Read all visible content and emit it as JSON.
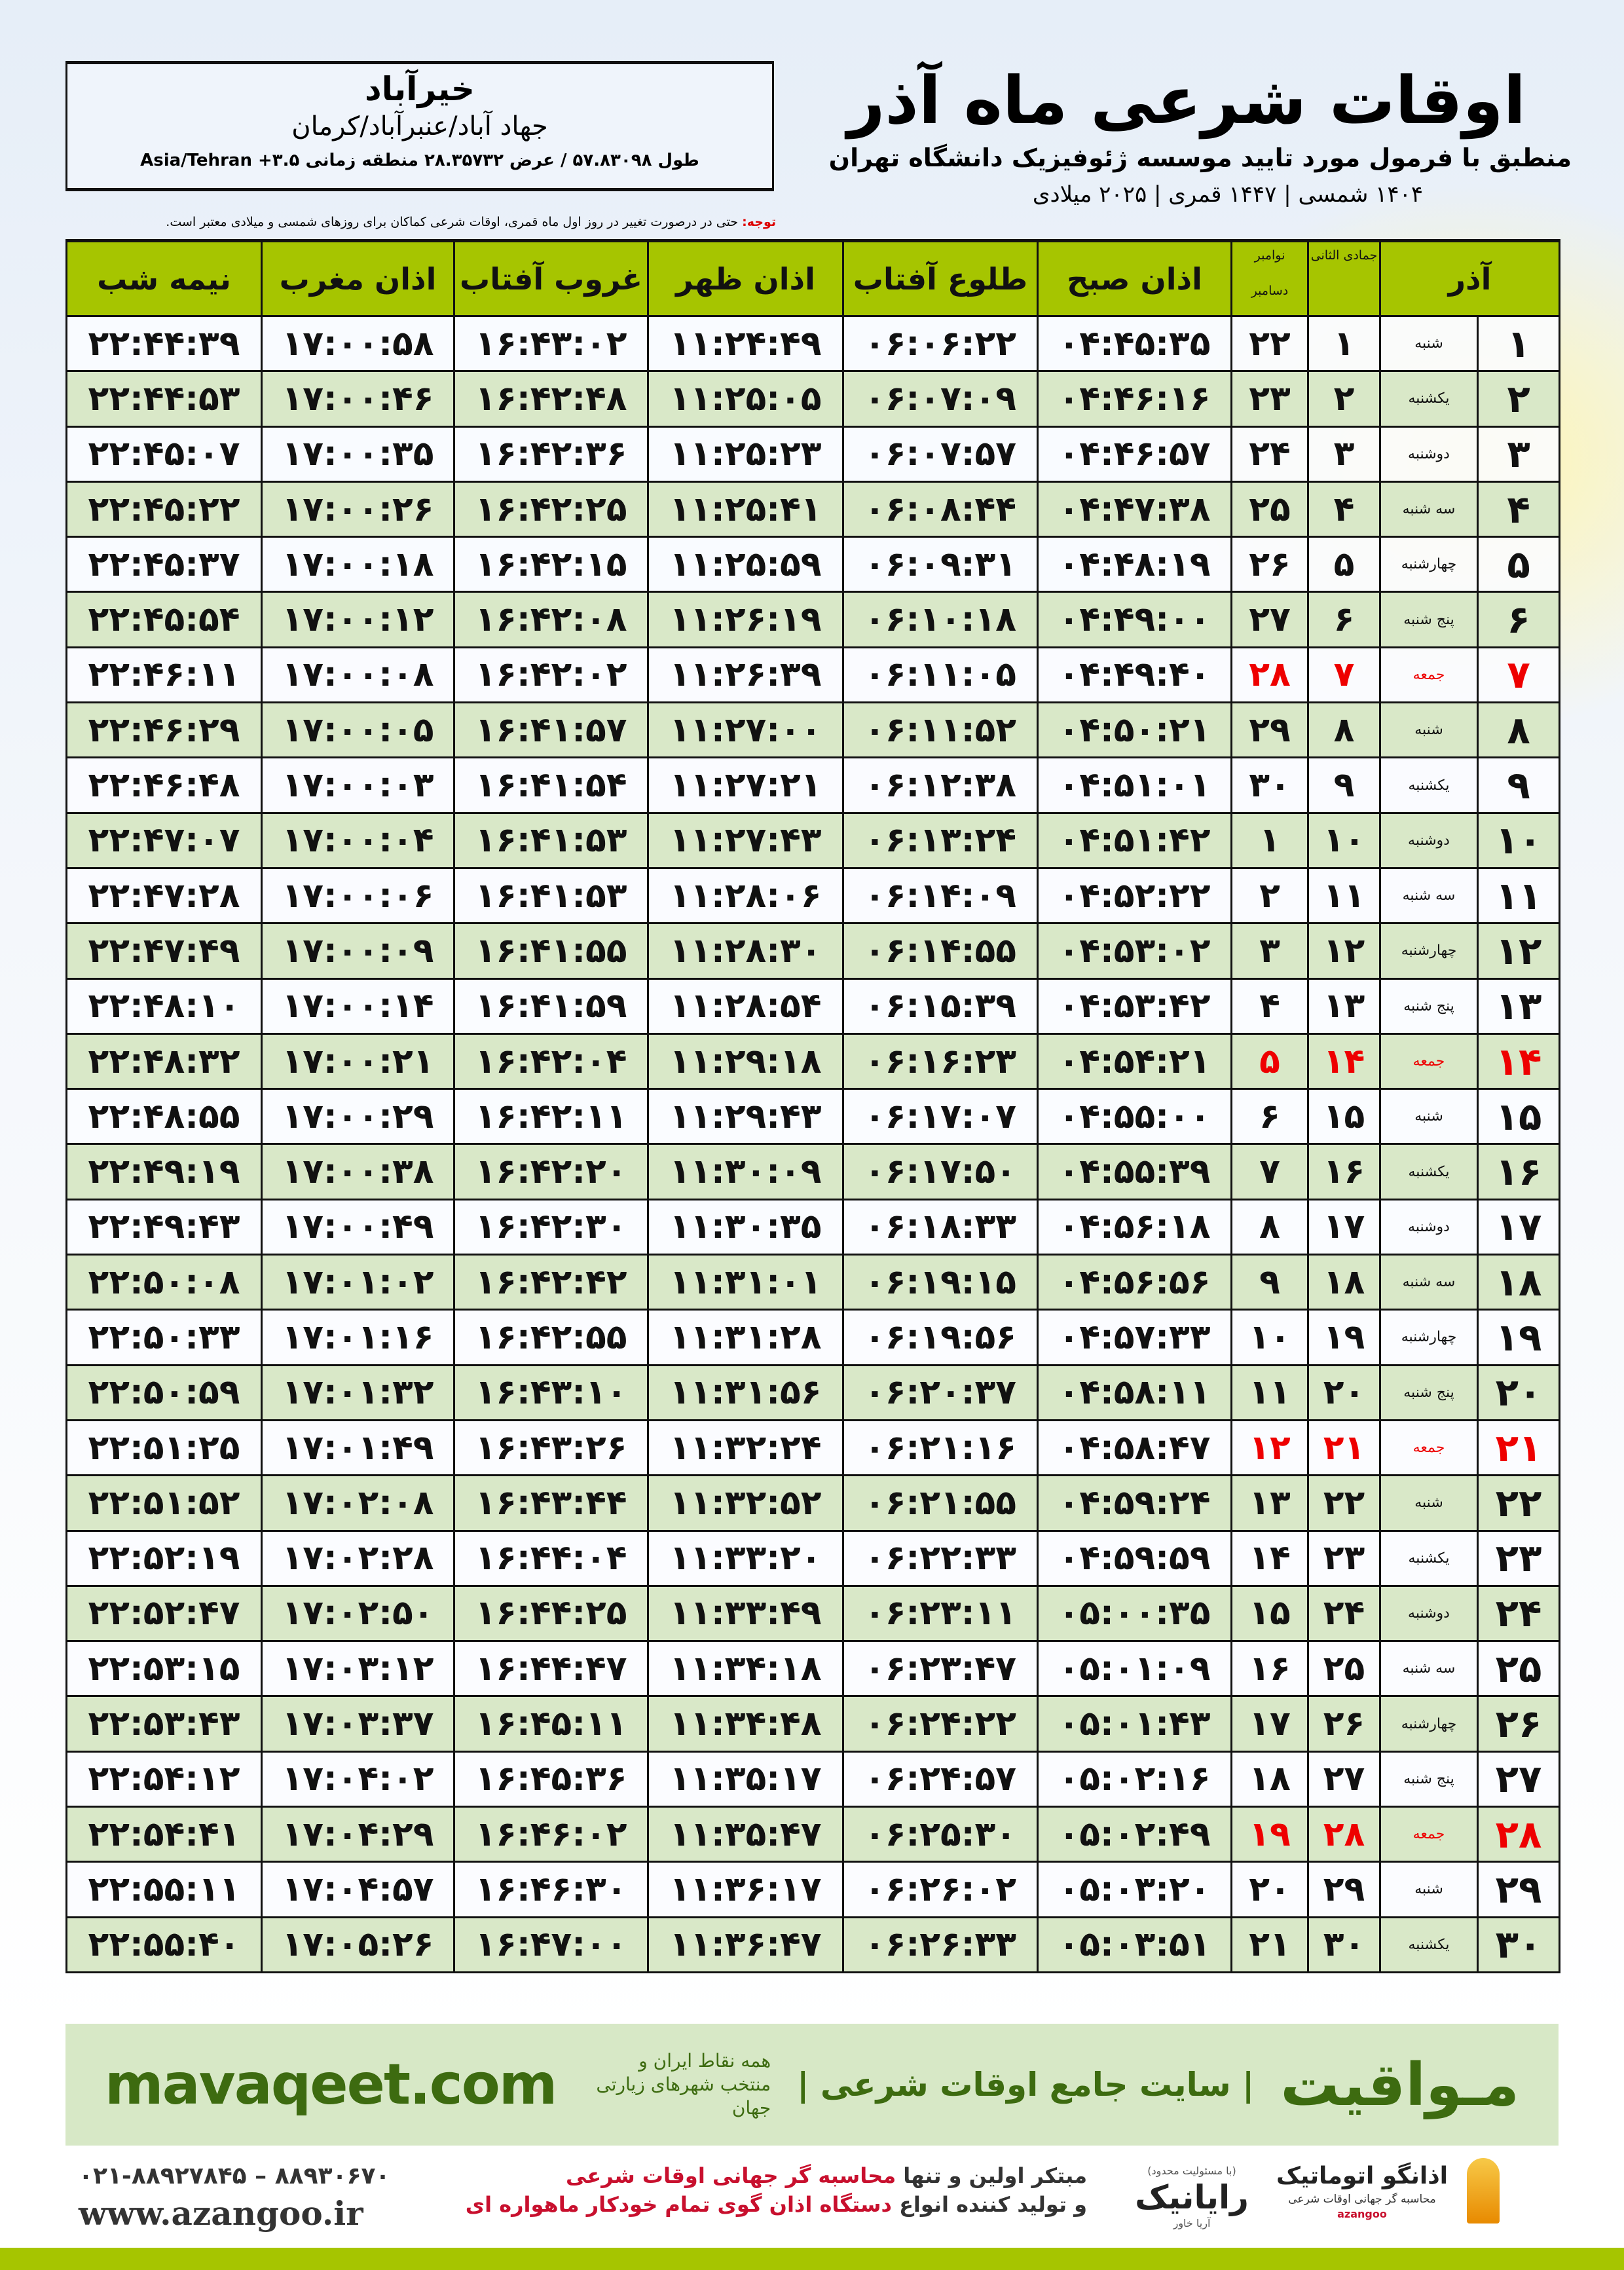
{
  "location": {
    "city": "خیرآباد",
    "path": "جهاد آباد/عنبرآباد/کرمان",
    "coords": "طول ۵۷.۸۳۰۹۸ / عرض ۲۸.۳۵۷۳۲ منطقه زمانی ۳.۵+ Asia/Tehran"
  },
  "title": {
    "main": "اوقات شرعی ماه آذر",
    "subtitle": "منطبق با فرمول مورد تایید موسسه ژئوفیزیک دانشگاه تهران",
    "years": "۱۴۰۴ شمسی | ۱۴۴۷ قمری | ۲۰۲۵ میلادی"
  },
  "note": {
    "label": "توجه:",
    "text": "حتی در درصورت تغییر در روز اول ماه قمری، اوقات شرعی کماکان برای روزهای شمسی و میلادی معتبر است."
  },
  "table": {
    "headers": {
      "azar": "آذر",
      "jamadi": "جمادی الثانی",
      "november": "نوامبر",
      "december": "دسامبر",
      "subh": "اذان صبح",
      "tolu": "طلوع آفتاب",
      "zohr": "اذان ظهر",
      "ghorub": "غروب آفتاب",
      "maghrib": "اذان مغرب",
      "nimeshab": "نیمه شب"
    },
    "holiday_color": "#ee0000",
    "rows": [
      [
        "۱",
        "شنبه",
        "۱",
        "۲۲",
        "۰۴:۴۵:۳۵",
        "۰۶:۰۶:۲۲",
        "۱۱:۲۴:۴۹",
        "۱۶:۴۳:۰۲",
        "۱۷:۰۰:۵۸",
        "۲۲:۴۴:۳۹"
      ],
      [
        "۲",
        "یکشنبه",
        "۲",
        "۲۳",
        "۰۴:۴۶:۱۶",
        "۰۶:۰۷:۰۹",
        "۱۱:۲۵:۰۵",
        "۱۶:۴۲:۴۸",
        "۱۷:۰۰:۴۶",
        "۲۲:۴۴:۵۳"
      ],
      [
        "۳",
        "دوشنبه",
        "۳",
        "۲۴",
        "۰۴:۴۶:۵۷",
        "۰۶:۰۷:۵۷",
        "۱۱:۲۵:۲۳",
        "۱۶:۴۲:۳۶",
        "۱۷:۰۰:۳۵",
        "۲۲:۴۵:۰۷"
      ],
      [
        "۴",
        "سه شنبه",
        "۴",
        "۲۵",
        "۰۴:۴۷:۳۸",
        "۰۶:۰۸:۴۴",
        "۱۱:۲۵:۴۱",
        "۱۶:۴۲:۲۵",
        "۱۷:۰۰:۲۶",
        "۲۲:۴۵:۲۲"
      ],
      [
        "۵",
        "چهارشنبه",
        "۵",
        "۲۶",
        "۰۴:۴۸:۱۹",
        "۰۶:۰۹:۳۱",
        "۱۱:۲۵:۵۹",
        "۱۶:۴۲:۱۵",
        "۱۷:۰۰:۱۸",
        "۲۲:۴۵:۳۷"
      ],
      [
        "۶",
        "پنج شنبه",
        "۶",
        "۲۷",
        "۰۴:۴۹:۰۰",
        "۰۶:۱۰:۱۸",
        "۱۱:۲۶:۱۹",
        "۱۶:۴۲:۰۸",
        "۱۷:۰۰:۱۲",
        "۲۲:۴۵:۵۴"
      ],
      [
        "۷",
        "جمعه",
        "۷",
        "۲۸",
        "۰۴:۴۹:۴۰",
        "۰۶:۱۱:۰۵",
        "۱۱:۲۶:۳۹",
        "۱۶:۴۲:۰۲",
        "۱۷:۰۰:۰۸",
        "۲۲:۴۶:۱۱"
      ],
      [
        "۸",
        "شنبه",
        "۸",
        "۲۹",
        "۰۴:۵۰:۲۱",
        "۰۶:۱۱:۵۲",
        "۱۱:۲۷:۰۰",
        "۱۶:۴۱:۵۷",
        "۱۷:۰۰:۰۵",
        "۲۲:۴۶:۲۹"
      ],
      [
        "۹",
        "یکشنبه",
        "۹",
        "۳۰",
        "۰۴:۵۱:۰۱",
        "۰۶:۱۲:۳۸",
        "۱۱:۲۷:۲۱",
        "۱۶:۴۱:۵۴",
        "۱۷:۰۰:۰۳",
        "۲۲:۴۶:۴۸"
      ],
      [
        "۱۰",
        "دوشنبه",
        "۱۰",
        "۱",
        "۰۴:۵۱:۴۲",
        "۰۶:۱۳:۲۴",
        "۱۱:۲۷:۴۳",
        "۱۶:۴۱:۵۳",
        "۱۷:۰۰:۰۴",
        "۲۲:۴۷:۰۷"
      ],
      [
        "۱۱",
        "سه شنبه",
        "۱۱",
        "۲",
        "۰۴:۵۲:۲۲",
        "۰۶:۱۴:۰۹",
        "۱۱:۲۸:۰۶",
        "۱۶:۴۱:۵۳",
        "۱۷:۰۰:۰۶",
        "۲۲:۴۷:۲۸"
      ],
      [
        "۱۲",
        "چهارشنبه",
        "۱۲",
        "۳",
        "۰۴:۵۳:۰۲",
        "۰۶:۱۴:۵۵",
        "۱۱:۲۸:۳۰",
        "۱۶:۴۱:۵۵",
        "۱۷:۰۰:۰۹",
        "۲۲:۴۷:۴۹"
      ],
      [
        "۱۳",
        "پنج شنبه",
        "۱۳",
        "۴",
        "۰۴:۵۳:۴۲",
        "۰۶:۱۵:۳۹",
        "۱۱:۲۸:۵۴",
        "۱۶:۴۱:۵۹",
        "۱۷:۰۰:۱۴",
        "۲۲:۴۸:۱۰"
      ],
      [
        "۱۴",
        "جمعه",
        "۱۴",
        "۵",
        "۰۴:۵۴:۲۱",
        "۰۶:۱۶:۲۳",
        "۱۱:۲۹:۱۸",
        "۱۶:۴۲:۰۴",
        "۱۷:۰۰:۲۱",
        "۲۲:۴۸:۳۲"
      ],
      [
        "۱۵",
        "شنبه",
        "۱۵",
        "۶",
        "۰۴:۵۵:۰۰",
        "۰۶:۱۷:۰۷",
        "۱۱:۲۹:۴۳",
        "۱۶:۴۲:۱۱",
        "۱۷:۰۰:۲۹",
        "۲۲:۴۸:۵۵"
      ],
      [
        "۱۶",
        "یکشنبه",
        "۱۶",
        "۷",
        "۰۴:۵۵:۳۹",
        "۰۶:۱۷:۵۰",
        "۱۱:۳۰:۰۹",
        "۱۶:۴۲:۲۰",
        "۱۷:۰۰:۳۸",
        "۲۲:۴۹:۱۹"
      ],
      [
        "۱۷",
        "دوشنبه",
        "۱۷",
        "۸",
        "۰۴:۵۶:۱۸",
        "۰۶:۱۸:۳۳",
        "۱۱:۳۰:۳۵",
        "۱۶:۴۲:۳۰",
        "۱۷:۰۰:۴۹",
        "۲۲:۴۹:۴۳"
      ],
      [
        "۱۸",
        "سه شنبه",
        "۱۸",
        "۹",
        "۰۴:۵۶:۵۶",
        "۰۶:۱۹:۱۵",
        "۱۱:۳۱:۰۱",
        "۱۶:۴۲:۴۲",
        "۱۷:۰۱:۰۲",
        "۲۲:۵۰:۰۸"
      ],
      [
        "۱۹",
        "چهارشنبه",
        "۱۹",
        "۱۰",
        "۰۴:۵۷:۳۳",
        "۰۶:۱۹:۵۶",
        "۱۱:۳۱:۲۸",
        "۱۶:۴۲:۵۵",
        "۱۷:۰۱:۱۶",
        "۲۲:۵۰:۳۳"
      ],
      [
        "۲۰",
        "پنج شنبه",
        "۲۰",
        "۱۱",
        "۰۴:۵۸:۱۱",
        "۰۶:۲۰:۳۷",
        "۱۱:۳۱:۵۶",
        "۱۶:۴۳:۱۰",
        "۱۷:۰۱:۳۲",
        "۲۲:۵۰:۵۹"
      ],
      [
        "۲۱",
        "جمعه",
        "۲۱",
        "۱۲",
        "۰۴:۵۸:۴۷",
        "۰۶:۲۱:۱۶",
        "۱۱:۳۲:۲۴",
        "۱۶:۴۳:۲۶",
        "۱۷:۰۱:۴۹",
        "۲۲:۵۱:۲۵"
      ],
      [
        "۲۲",
        "شنبه",
        "۲۲",
        "۱۳",
        "۰۴:۵۹:۲۴",
        "۰۶:۲۱:۵۵",
        "۱۱:۳۲:۵۲",
        "۱۶:۴۳:۴۴",
        "۱۷:۰۲:۰۸",
        "۲۲:۵۱:۵۲"
      ],
      [
        "۲۳",
        "یکشنبه",
        "۲۳",
        "۱۴",
        "۰۴:۵۹:۵۹",
        "۰۶:۲۲:۳۳",
        "۱۱:۳۳:۲۰",
        "۱۶:۴۴:۰۴",
        "۱۷:۰۲:۲۸",
        "۲۲:۵۲:۱۹"
      ],
      [
        "۲۴",
        "دوشنبه",
        "۲۴",
        "۱۵",
        "۰۵:۰۰:۳۵",
        "۰۶:۲۳:۱۱",
        "۱۱:۳۳:۴۹",
        "۱۶:۴۴:۲۵",
        "۱۷:۰۲:۵۰",
        "۲۲:۵۲:۴۷"
      ],
      [
        "۲۵",
        "سه شنبه",
        "۲۵",
        "۱۶",
        "۰۵:۰۱:۰۹",
        "۰۶:۲۳:۴۷",
        "۱۱:۳۴:۱۸",
        "۱۶:۴۴:۴۷",
        "۱۷:۰۳:۱۲",
        "۲۲:۵۳:۱۵"
      ],
      [
        "۲۶",
        "چهارشنبه",
        "۲۶",
        "۱۷",
        "۰۵:۰۱:۴۳",
        "۰۶:۲۴:۲۲",
        "۱۱:۳۴:۴۸",
        "۱۶:۴۵:۱۱",
        "۱۷:۰۳:۳۷",
        "۲۲:۵۳:۴۳"
      ],
      [
        "۲۷",
        "پنج شنبه",
        "۲۷",
        "۱۸",
        "۰۵:۰۲:۱۶",
        "۰۶:۲۴:۵۷",
        "۱۱:۳۵:۱۷",
        "۱۶:۴۵:۳۶",
        "۱۷:۰۴:۰۲",
        "۲۲:۵۴:۱۲"
      ],
      [
        "۲۸",
        "جمعه",
        "۲۸",
        "۱۹",
        "۰۵:۰۲:۴۹",
        "۰۶:۲۵:۳۰",
        "۱۱:۳۵:۴۷",
        "۱۶:۴۶:۰۲",
        "۱۷:۰۴:۲۹",
        "۲۲:۵۴:۴۱"
      ],
      [
        "۲۹",
        "شنبه",
        "۲۹",
        "۲۰",
        "۰۵:۰۳:۲۰",
        "۰۶:۲۶:۰۲",
        "۱۱:۳۶:۱۷",
        "۱۶:۴۶:۳۰",
        "۱۷:۰۴:۵۷",
        "۲۲:۵۵:۱۱"
      ],
      [
        "۳۰",
        "یکشنبه",
        "۳۰",
        "۲۱",
        "۰۵:۰۳:۵۱",
        "۰۶:۲۶:۳۳",
        "۱۱:۳۶:۴۷",
        "۱۶:۴۷:۰۰",
        "۱۷:۰۵:۲۶",
        "۲۲:۵۵:۴۰"
      ]
    ]
  },
  "banner": {
    "brand": "مـواقیت",
    "slogan": "| سایت جامع اوقات شرعی |",
    "sub": "همه نقاط ایران و منتخب شهرهای زیارتی جهان",
    "site": "mavaqeet.com"
  },
  "promo": {
    "line1a": "مبتکر اولین و تنها ",
    "line1b": "محاسبه گر جهانی اوقات شرعی",
    "line2a": "و تولید کننده انواع ",
    "line2b": "دستگاه اذان گوی تمام خودکار ماهواره ای"
  },
  "contact": {
    "phones": "۰۲۱-۸۸۹۲۷۸۴۵ – ۸۸۹۳۰۶۷۰",
    "web": "www.azangoo.ir"
  },
  "logos": {
    "rayanik": "رایانیک",
    "rayanik_sub": "آریا خاور",
    "rayanik_note": "(با مسئولیت محدود)",
    "azangoo": "اذانگو اتوماتیک",
    "azangoo_sub": "محاسبه گر جهانی اوقات شرعی",
    "azangoo_en": "azangoo"
  },
  "colors": {
    "header": "#a6c500",
    "row_alt": "#d9e8c8",
    "banner": "#d7e8c6",
    "brand_text": "#3d6b10",
    "accent_red": "#c8102e"
  }
}
